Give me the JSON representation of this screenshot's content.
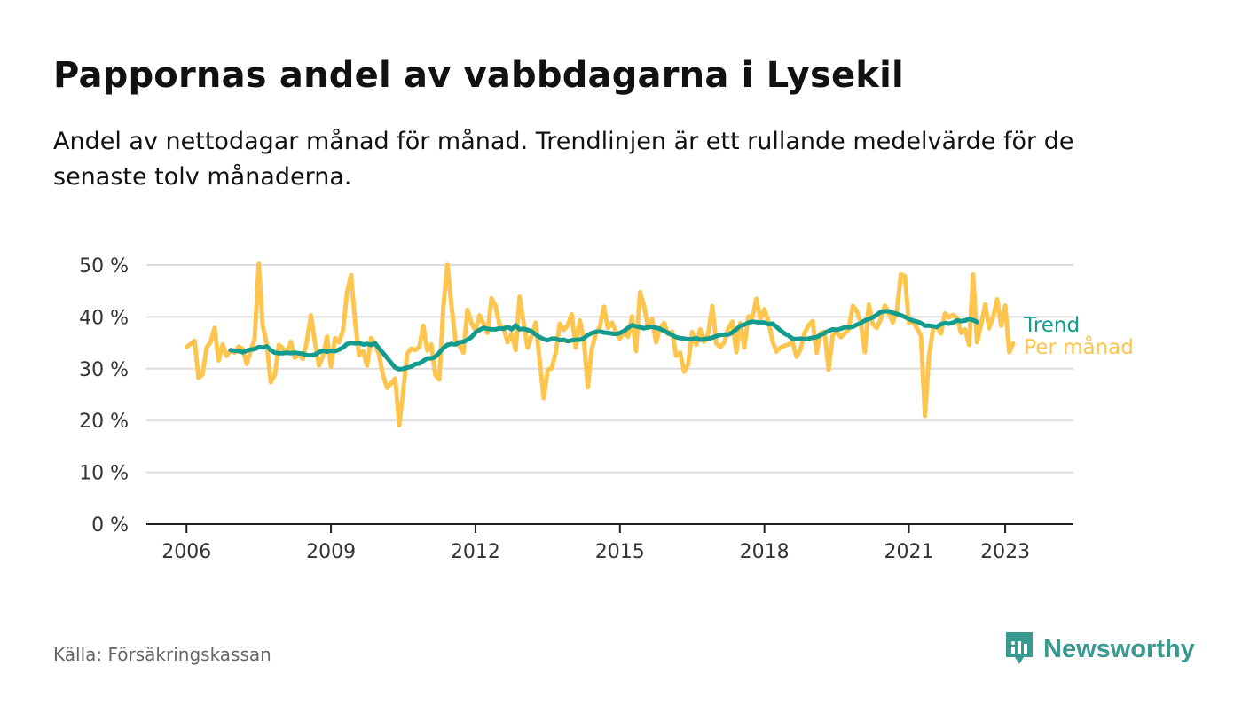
{
  "title": "Pappornas andel av vabbdagarna i Lysekil",
  "subtitle": "Andel av nettodagar månad för månad. Trendlinjen är ett rullande medelvärde för de senaste tolv månaderna.",
  "source": "Källa: Försäkringskassan",
  "brand": {
    "name": "Newsworthy",
    "icon": "newsworthy-logo-icon"
  },
  "colors": {
    "monthly": "#fdc54e",
    "trend": "#139b8d",
    "grid": "#dddddd",
    "axis": "#222222",
    "text": "#333333",
    "brand": "#3a9a90"
  },
  "chart_data": {
    "type": "line",
    "title": "Pappornas andel av vabbdagarna i Lysekil",
    "xlabel": "",
    "ylabel": "",
    "x_ticks": [
      "2006",
      "2009",
      "2012",
      "2015",
      "2018",
      "2021",
      "2023"
    ],
    "y_ticks": [
      "0 %",
      "10 %",
      "20 %",
      "30 %",
      "40 %",
      "50 %"
    ],
    "ylim": [
      0,
      50
    ],
    "xlim": [
      "2005-03",
      "2024-06"
    ],
    "grid": true,
    "series": [
      {
        "name": "Per månad",
        "color": "#fdc54e",
        "start": "2006-01",
        "values": [
          34.2,
          34.8,
          35.4,
          28.2,
          28.9,
          34.1,
          35.2,
          37.9,
          31.6,
          34.7,
          32.5,
          33.6,
          33.1,
          34.3,
          33.8,
          30.9,
          33.4,
          35.8,
          50.4,
          38.2,
          34.9,
          27.4,
          28.8,
          34.6,
          33.9,
          33.2,
          35.2,
          32.1,
          32.8,
          31.9,
          35.4,
          40.3,
          35.1,
          30.6,
          32.4,
          36.2,
          30.4,
          35.9,
          35.1,
          37.4,
          44.8,
          48.1,
          39.2,
          32.6,
          33.4,
          30.6,
          35.9,
          34.8,
          32.5,
          28.6,
          26.3,
          27.2,
          28.1,
          19.1,
          25.7,
          32.9,
          33.9,
          33.6,
          34.2,
          38.3,
          33.5,
          34.7,
          28.8,
          27.9,
          42.1,
          50.2,
          42.4,
          35.6,
          34.4,
          33.1,
          41.4,
          38.8,
          37.4,
          40.3,
          38.7,
          36.9,
          43.6,
          42.2,
          38.4,
          37.9,
          35.1,
          36.8,
          33.6,
          43.9,
          38.8,
          34.1,
          36.4,
          38.9,
          31.5,
          24.3,
          29.8,
          30.1,
          33.1,
          38.7,
          37.5,
          38.4,
          40.5,
          34.1,
          39.3,
          35.7,
          26.4,
          33.9,
          36.7,
          38.1,
          42.0,
          37.9,
          38.9,
          37.2,
          35.8,
          37.1,
          36.2,
          40.1,
          33.4,
          44.8,
          42.1,
          37.9,
          39.6,
          35.1,
          37.9,
          38.8,
          36.7,
          37.2,
          32.5,
          33.1,
          29.4,
          30.8,
          37.1,
          34.6,
          37.6,
          35.2,
          36.8,
          42.1,
          34.9,
          34.2,
          35.1,
          37.8,
          39.1,
          33.2,
          38.8,
          34.1,
          40.1,
          39.9,
          43.5,
          39.6,
          41.5,
          39.1,
          35.4,
          33.3,
          34.1,
          34.4,
          34.7,
          35.2,
          32.3,
          33.8,
          36.9,
          38.4,
          39.2,
          33.1,
          36.9,
          37.1,
          29.8,
          36.4,
          37.2,
          36.1,
          36.8,
          37.6,
          42.1,
          41.2,
          38.9,
          33.2,
          42.4,
          38.6,
          37.9,
          39.6,
          42.2,
          40.8,
          38.9,
          41.2,
          48.2,
          47.9,
          38.9,
          39.1,
          37.8,
          36.4,
          20.9,
          32.4,
          37.6,
          38.1,
          36.8,
          40.7,
          39.9,
          40.4,
          39.8,
          36.9,
          37.6,
          34.6,
          48.2,
          35.1,
          38.6,
          42.4,
          37.8,
          40.1,
          43.4,
          38.3,
          42.2,
          33.2,
          34.9
        ]
      },
      {
        "name": "Trend",
        "color": "#139b8d",
        "start": "2006-12",
        "values": [
          33.6,
          33.5,
          33.4,
          33.2,
          33.5,
          33.7,
          33.8,
          34.2,
          34.1,
          34.3,
          33.6,
          33.1,
          33.0,
          33.0,
          33.1,
          33.0,
          33.1,
          33.0,
          32.9,
          32.6,
          32.6,
          32.7,
          33.2,
          33.5,
          33.3,
          33.5,
          33.4,
          33.7,
          34.1,
          34.8,
          35.0,
          34.9,
          35.0,
          34.7,
          34.8,
          34.6,
          34.9,
          33.9,
          33.0,
          32.1,
          31.1,
          30.2,
          29.9,
          30.0,
          30.2,
          30.4,
          30.9,
          31.0,
          31.5,
          32.0,
          32.0,
          32.3,
          33.1,
          34.0,
          34.6,
          34.8,
          34.7,
          35.1,
          35.2,
          35.6,
          36.1,
          37.0,
          37.5,
          37.9,
          37.7,
          37.6,
          37.6,
          37.8,
          37.7,
          38.1,
          37.6,
          38.4,
          37.6,
          37.7,
          37.5,
          37.2,
          36.6,
          36.1,
          35.7,
          35.5,
          35.8,
          35.8,
          35.5,
          35.6,
          35.3,
          35.5,
          35.6,
          35.6,
          35.9,
          36.5,
          36.9,
          37.1,
          37.2,
          37.0,
          36.9,
          36.8,
          36.7,
          36.9,
          37.3,
          37.9,
          38.4,
          38.2,
          38.0,
          37.8,
          38.0,
          38.1,
          37.9,
          37.7,
          37.3,
          36.9,
          36.5,
          36.1,
          35.9,
          35.8,
          35.7,
          35.7,
          35.9,
          35.6,
          35.7,
          35.8,
          36.0,
          36.3,
          36.5,
          36.6,
          36.6,
          37.0,
          37.6,
          38.3,
          38.5,
          38.9,
          39.1,
          39.0,
          38.9,
          38.9,
          38.6,
          38.7,
          38.1,
          37.4,
          36.8,
          36.4,
          35.8,
          35.7,
          35.8,
          35.7,
          35.8,
          36.0,
          36.1,
          36.5,
          36.9,
          37.3,
          37.6,
          37.5,
          37.7,
          38.0,
          38.0,
          38.1,
          38.5,
          38.8,
          39.3,
          39.6,
          39.9,
          40.4,
          41.0,
          41.1,
          41.1,
          40.8,
          40.6,
          40.3,
          40.0,
          39.6,
          39.3,
          39.1,
          38.8,
          38.3,
          38.3,
          38.2,
          38.1,
          38.6,
          38.8,
          38.7,
          38.9,
          39.3,
          39.2,
          39.3,
          39.6,
          39.4,
          39.0
        ]
      }
    ]
  }
}
